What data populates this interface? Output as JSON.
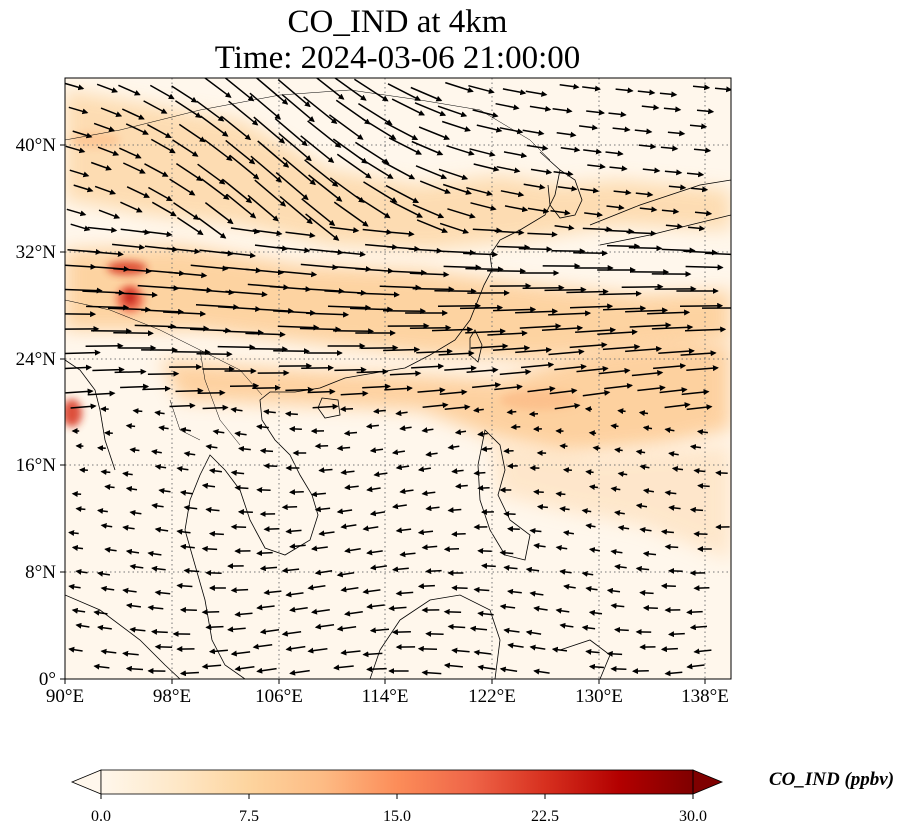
{
  "title": {
    "line1": "CO_IND at 4km",
    "line2": "Time: 2024-03-06 21:00:00"
  },
  "map": {
    "lon_range": [
      90,
      139.5
    ],
    "lat_range": [
      0,
      45
    ],
    "lon_ticks": [
      "90°E",
      "98°E",
      "106°E",
      "114°E",
      "122°E",
      "130°E",
      "138°E"
    ],
    "lat_ticks": [
      "0°",
      "8°N",
      "16°N",
      "24°N",
      "32°N",
      "40°N"
    ],
    "gridlines": "dotted",
    "field_colormap": "OrRd",
    "wind_vectors": "shown"
  },
  "colorbar": {
    "label": "CO_IND (ppbv)",
    "ticks": [
      "0.0",
      "7.5",
      "15.0",
      "22.5",
      "30.0"
    ],
    "range": [
      0,
      30
    ],
    "extend": "both",
    "colors": [
      "#fff7ec",
      "#fee8c8",
      "#fdd49e",
      "#fdbb84",
      "#fc8d59",
      "#ef6548",
      "#d7301f",
      "#b30000",
      "#7f0000"
    ]
  }
}
